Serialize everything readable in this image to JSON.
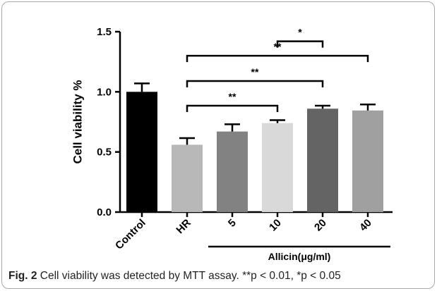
{
  "chart_data": {
    "type": "bar",
    "categories": [
      "Control",
      "HR",
      "5",
      "10",
      "20",
      "40"
    ],
    "values": [
      1.0,
      0.56,
      0.67,
      0.74,
      0.86,
      0.845
    ],
    "errors": [
      0.07,
      0.055,
      0.06,
      0.025,
      0.025,
      0.05
    ],
    "colors": [
      "#000000",
      "#b8b8b8",
      "#828282",
      "#d9d9d9",
      "#646464",
      "#a0a0a0"
    ],
    "ylabel": "Cell viability %",
    "ylim": [
      0,
      1.5
    ],
    "yticks": [
      "0.0",
      "0.5",
      "1.0",
      "1.5"
    ],
    "ytick_values": [
      0,
      0.5,
      1.0,
      1.5
    ],
    "group_label": "Allicin(μg/ml)",
    "group_categories": [
      "5",
      "10",
      "20",
      "40"
    ],
    "significance": [
      {
        "from": "10",
        "to": "20",
        "label": "*",
        "level": 1.42
      },
      {
        "from": "HR",
        "to": "40",
        "label": "**",
        "level": 1.3
      },
      {
        "from": "HR",
        "to": "20",
        "label": "**",
        "level": 1.09
      },
      {
        "from": "HR",
        "to": "10",
        "label": "**",
        "level": 0.885
      }
    ]
  },
  "caption": {
    "fig_label": "Fig. 2",
    "text": "Cell viability was detected by MTT assay. **p < 0.01, *p < 0.05"
  }
}
